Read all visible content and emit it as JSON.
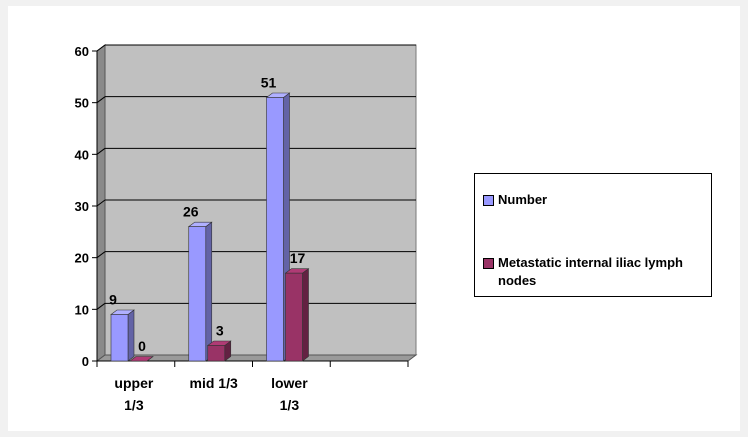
{
  "chart_data": {
    "type": "bar",
    "categories": [
      "upper 1/3",
      "mid 1/3",
      "lower 1/3"
    ],
    "series": [
      {
        "name": "Number",
        "values": [
          9,
          26,
          51
        ],
        "color": "#9999ff"
      },
      {
        "name": "Metastatic internal iliac lymph nodes",
        "values": [
          0,
          3,
          17
        ],
        "color": "#993366"
      }
    ],
    "ylim": [
      0,
      60
    ],
    "yticks": [
      0,
      10,
      20,
      30,
      40,
      50,
      60
    ],
    "grid": true,
    "plot_background": "#c0c0c0",
    "legend_position": "right",
    "three_d": true
  },
  "legend": {
    "items": [
      {
        "label": "Number",
        "color": "#9999ff"
      },
      {
        "label": "Metastatic internal iliac lymph nodes",
        "color": "#993366"
      }
    ]
  }
}
